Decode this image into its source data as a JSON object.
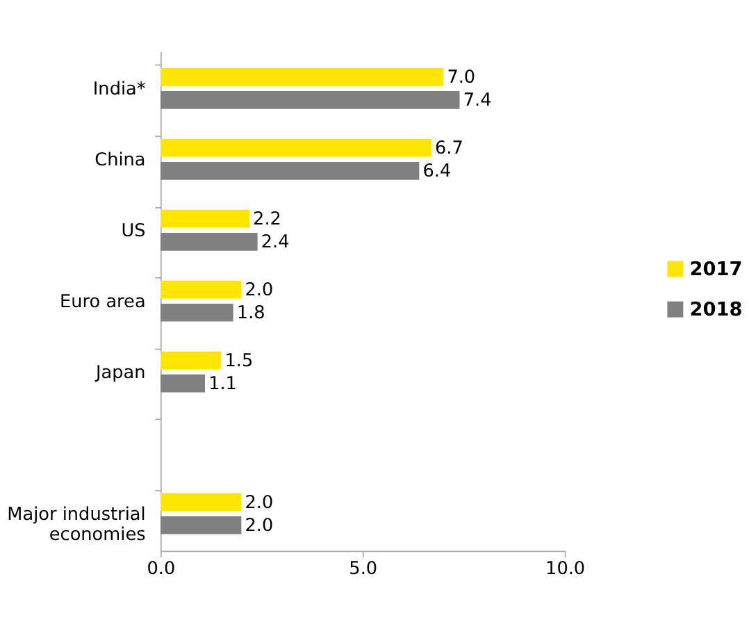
{
  "chart_data": {
    "type": "bar",
    "orientation": "horizontal",
    "categories": [
      "India*",
      "China",
      "US",
      "Euro area",
      "Japan",
      null,
      "Major industrial economies"
    ],
    "series": [
      {
        "name": "2017",
        "color": "#ffe600",
        "values": [
          7.0,
          6.7,
          2.2,
          2.0,
          1.5,
          null,
          2.0
        ],
        "value_labels": [
          "7.0",
          "6.7",
          "2.2",
          "2.0",
          "1.5",
          null,
          "2.0"
        ]
      },
      {
        "name": "2018",
        "color": "#808080",
        "values": [
          7.4,
          6.4,
          2.4,
          1.8,
          1.1,
          null,
          2.0
        ],
        "value_labels": [
          "7.4",
          "6.4",
          "2.4",
          "1.8",
          "1.1",
          null,
          "2.0"
        ]
      }
    ],
    "xlim": [
      0,
      10
    ],
    "xticks": [
      {
        "value": 0,
        "label": "0.0"
      },
      {
        "value": 5,
        "label": "5.0"
      },
      {
        "value": 10,
        "label": "10.0"
      }
    ],
    "legend": "right",
    "grid": false
  }
}
